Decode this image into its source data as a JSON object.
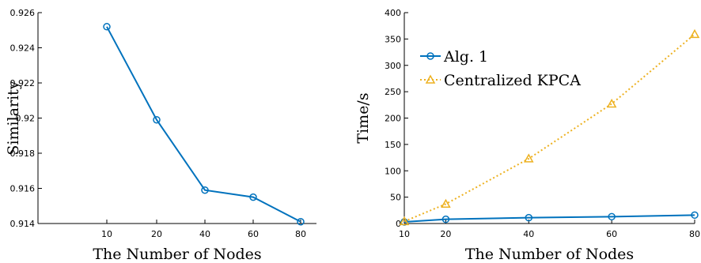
{
  "chart_data": [
    {
      "type": "line",
      "xlabel": "The Number of Nodes",
      "ylabel": "Similarity",
      "categories": [
        "10",
        "20",
        "40",
        "60",
        "80"
      ],
      "ylim": [
        0.914,
        0.926
      ],
      "yticks": [
        "0.914",
        "0.916",
        "0.918",
        "0.92",
        "0.922",
        "0.924",
        "0.926"
      ],
      "grid": false,
      "series": [
        {
          "color": "#0072BD",
          "marker": "circle",
          "values": [
            0.9252,
            0.9199,
            0.9159,
            0.9155,
            0.9141
          ]
        }
      ]
    },
    {
      "type": "line",
      "xlabel": "The Number of Nodes",
      "ylabel": "Time/s",
      "x": [
        10,
        20,
        40,
        60,
        80
      ],
      "xticks": [
        "10",
        "20",
        "40",
        "60",
        "80"
      ],
      "xlim": [
        10,
        80
      ],
      "ylim": [
        0,
        400
      ],
      "yticks": [
        "0",
        "50",
        "100",
        "150",
        "200",
        "250",
        "300",
        "350",
        "400"
      ],
      "grid": false,
      "legend": "top-left",
      "series": [
        {
          "name": "Alg. 1",
          "color": "#0072BD",
          "marker": "circle",
          "line": "solid",
          "values": [
            3,
            8,
            11,
            13,
            16
          ]
        },
        {
          "name": "Centralized KPCA",
          "color": "#EDB120",
          "marker": "triangle",
          "line": "dotted",
          "values": [
            4,
            37,
            123,
            227,
            359
          ]
        }
      ]
    }
  ]
}
